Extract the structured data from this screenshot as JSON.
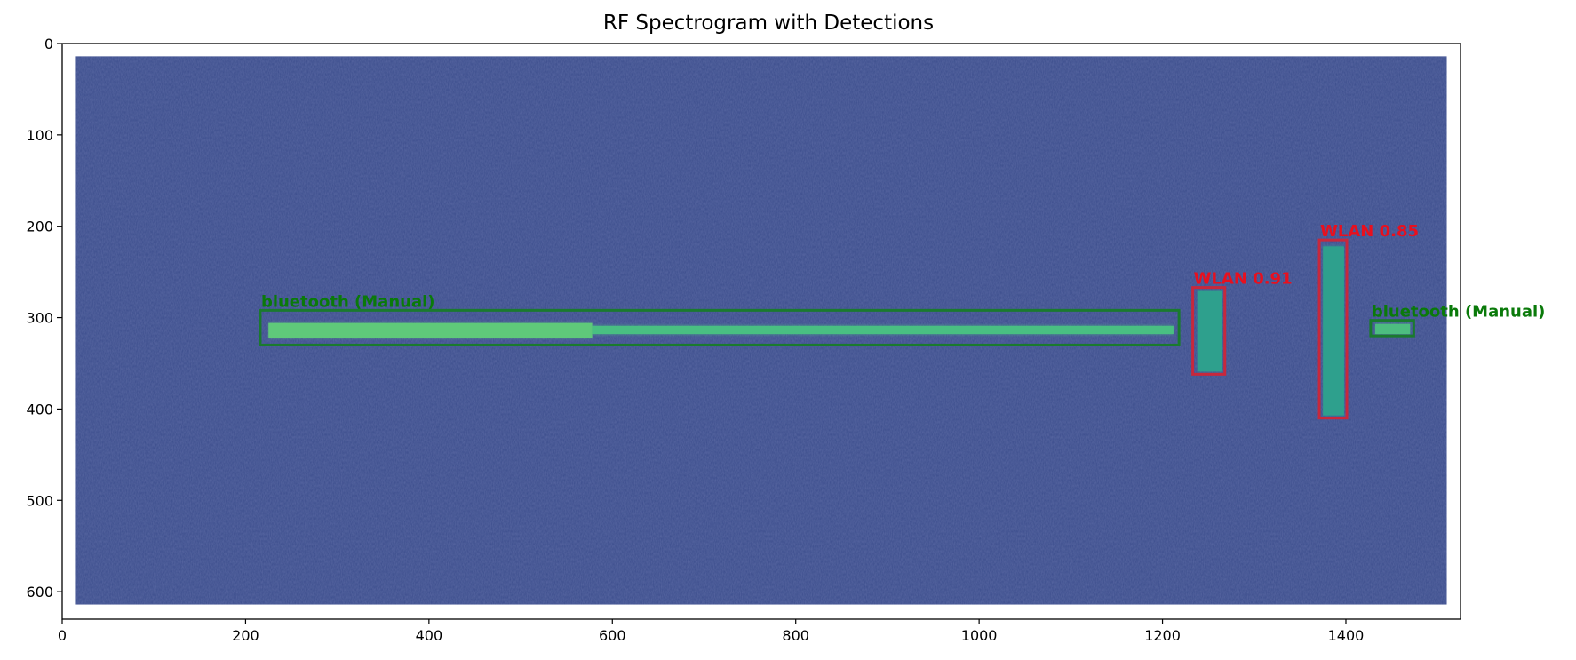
{
  "chart_data": {
    "type": "heatmap",
    "title": "RF Spectrogram with Detections",
    "xlabel": "",
    "ylabel": "",
    "xlim": [
      0,
      1525
    ],
    "ylim": [
      630,
      0
    ],
    "x_ticks": [
      0,
      200,
      400,
      600,
      800,
      1000,
      1200,
      1400
    ],
    "x_tick_labels": [
      "0",
      "200",
      "400",
      "600",
      "800",
      "1000",
      "1200",
      "1400"
    ],
    "y_ticks": [
      0,
      100,
      200,
      300,
      400,
      500,
      600
    ],
    "y_tick_labels": [
      "0",
      "100",
      "200",
      "300",
      "400",
      "500",
      "600"
    ],
    "spectrogram": {
      "extent_x": [
        14,
        1510
      ],
      "extent_y": [
        14,
        614
      ],
      "background_color": "#3b4d8c",
      "colormap": "viridis"
    },
    "signals": [
      {
        "name": "bluetooth-trace-bright",
        "x0": 225,
        "x1": 578,
        "y0": 306,
        "y1": 322,
        "color": "#5fc97a"
      },
      {
        "name": "bluetooth-trace",
        "x0": 578,
        "x1": 1212,
        "y0": 309,
        "y1": 318,
        "color": "#49bf82"
      },
      {
        "name": "wlan-block-1",
        "x0": 1238,
        "x1": 1265,
        "y0": 271,
        "y1": 359,
        "color": "#2ea08d"
      },
      {
        "name": "wlan-block-2",
        "x0": 1375,
        "x1": 1398,
        "y0": 222,
        "y1": 407,
        "color": "#2ea08d"
      },
      {
        "name": "bluetooth-small",
        "x0": 1432,
        "x1": 1470,
        "y0": 307,
        "y1": 318,
        "color": "#4dbd80"
      }
    ],
    "detections": [
      {
        "label": "bluetooth (Manual)",
        "x0": 216,
        "x1": 1218,
        "y0": 292,
        "y1": 330,
        "color": "#1a7a2e",
        "text_color": "#0a7a0a"
      },
      {
        "label": "WLAN 0.91",
        "x0": 1233,
        "x1": 1268,
        "y0": 267,
        "y1": 362,
        "color": "#c7283c",
        "text_color": "#e8101e"
      },
      {
        "label": "WLAN 0.85",
        "x0": 1371,
        "x1": 1401,
        "y0": 215,
        "y1": 410,
        "color": "#c7283c",
        "text_color": "#e8101e"
      },
      {
        "label": "bluetooth (Manual)",
        "x0": 1427,
        "x1": 1474,
        "y0": 303,
        "y1": 320,
        "color": "#1a7a2e",
        "text_color": "#0a7a0a"
      }
    ]
  }
}
